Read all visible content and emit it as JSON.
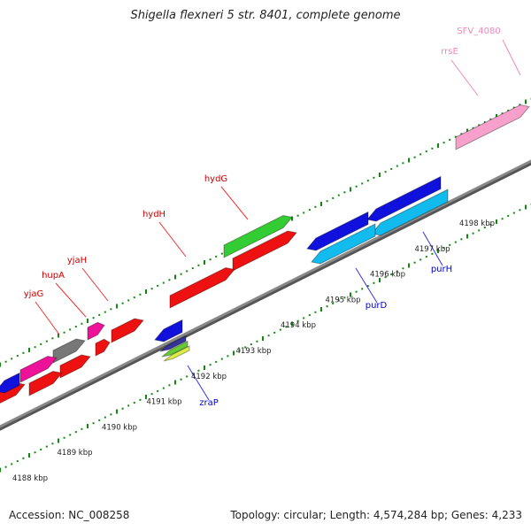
{
  "title": "Shigella flexneri 5 str. 8401, complete genome",
  "footer": {
    "accession": "Accession: NC_008258",
    "summary": "Topology: circular; Length: 4,574,284 bp; Genes: 4,233"
  },
  "colors": {
    "forward_gene": "#ee1111",
    "reverse_gene": "#1111dd",
    "light_blue_gene": "#11bbee",
    "green_gene": "#33cc33",
    "magenta_gene": "#ee1199",
    "pink_gene": "#f7a0cc",
    "gray_gene": "#777777",
    "backbone": "#888888",
    "tick": "#118811",
    "label_forward": "#cc0000",
    "label_reverse": "#0000cc",
    "label_pink": "#ee88bb"
  },
  "scale_labels": [
    "4188 kbp",
    "4189 kbp",
    "4190 kbp",
    "4191 kbp",
    "4192 kbp",
    "4193 kbp",
    "4194 kbp",
    "4195 kbp",
    "4196 kbp",
    "4197 kbp",
    "4198 kbp"
  ],
  "gene_labels": [
    {
      "text": "yjaG",
      "strand": "forward"
    },
    {
      "text": "hupA",
      "strand": "forward"
    },
    {
      "text": "yjaH",
      "strand": "forward"
    },
    {
      "text": "hydH",
      "strand": "forward"
    },
    {
      "text": "hydG",
      "strand": "forward"
    },
    {
      "text": "rrsE",
      "strand": "pink"
    },
    {
      "text": "SFV_4080",
      "strand": "pink"
    },
    {
      "text": "zraP",
      "strand": "reverse"
    },
    {
      "text": "purD",
      "strand": "reverse"
    },
    {
      "text": "purH",
      "strand": "reverse"
    }
  ]
}
